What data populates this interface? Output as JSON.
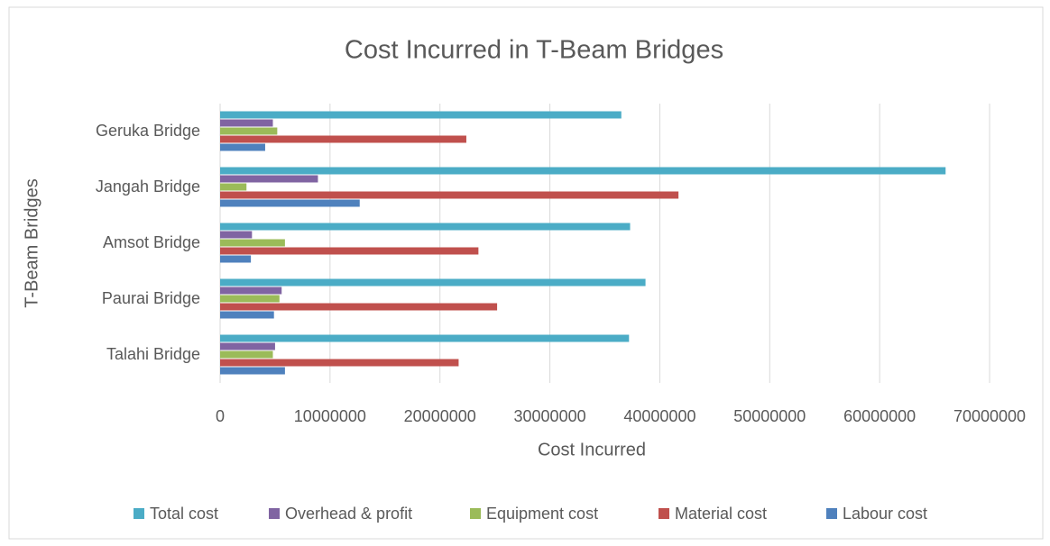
{
  "chart_data": {
    "type": "hbar",
    "title": "Cost Incurred in T-Beam Bridges",
    "xlabel": "Cost Incurred",
    "ylabel": "T-Beam Bridges",
    "categories": [
      "Geruka Bridge",
      "Jangah Bridge",
      "Amsot Bridge",
      "Paurai Bridge",
      "Talahi Bridge"
    ],
    "series": [
      {
        "name": "Total cost",
        "color": "#4bacc6",
        "values": [
          36500000,
          66000000,
          37300000,
          38700000,
          37200000
        ]
      },
      {
        "name": "Overhead & profit",
        "color": "#8064a2",
        "values": [
          4800000,
          8900000,
          2900000,
          5600000,
          5000000
        ]
      },
      {
        "name": "Equipment cost",
        "color": "#9bbb59",
        "values": [
          5200000,
          2400000,
          5900000,
          5400000,
          4800000
        ]
      },
      {
        "name": "Material cost",
        "color": "#c0504d",
        "values": [
          22400000,
          41700000,
          23500000,
          25200000,
          21700000
        ]
      },
      {
        "name": "Labour cost",
        "color": "#4f81bd",
        "values": [
          4100000,
          12700000,
          2800000,
          4900000,
          5900000
        ]
      }
    ],
    "xlim": [
      0,
      70000000
    ],
    "xticks": [
      0,
      10000000,
      20000000,
      30000000,
      40000000,
      50000000,
      60000000,
      70000000
    ],
    "grid": true,
    "legend": "bottom"
  }
}
